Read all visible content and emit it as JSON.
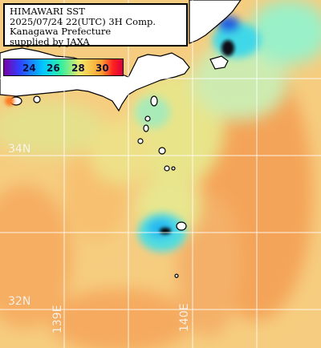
{
  "title": {
    "lines": [
      "HIMAWARI SST",
      "2025/07/24 22(UTC) 3H Comp.",
      "Kanagawa Prefecture",
      "supplied by JAXA"
    ]
  },
  "colorbar": {
    "ticks": [
      "24",
      "26",
      "28",
      "30"
    ],
    "colors": [
      "#7a00a8",
      "#3040ff",
      "#00c8ff",
      "#30f0a0",
      "#f0e868",
      "#ffa030",
      "#ff2020"
    ]
  },
  "map": {
    "lat_labels": [
      "34N",
      "32N"
    ],
    "lon_labels": [
      "139E",
      "140E"
    ],
    "grid_color": "#ffffff",
    "land_color": "#ffffff",
    "coast_color": "#000000",
    "sea_base_color": "#f5c97a"
  }
}
